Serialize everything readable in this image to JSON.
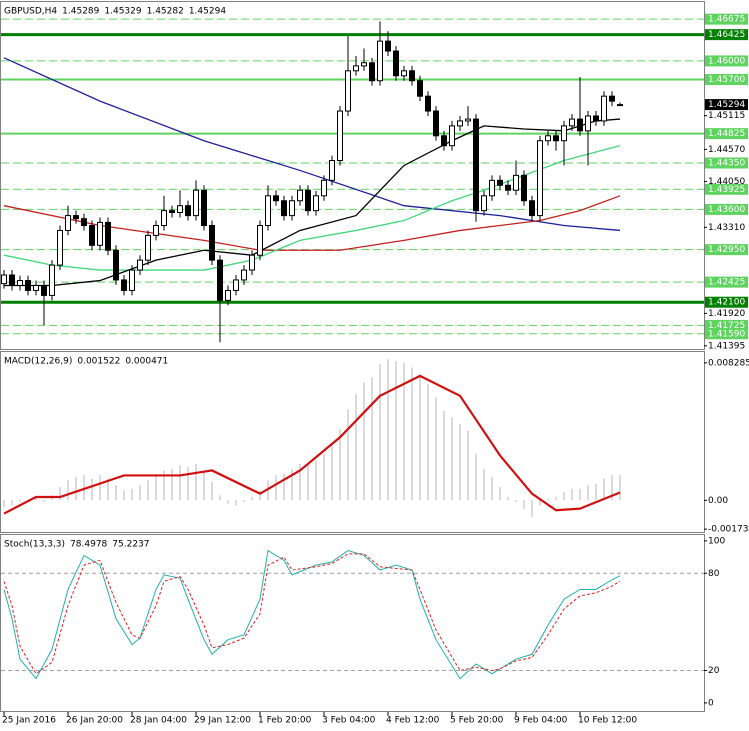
{
  "chart_data": [
    {
      "type": "candlestick",
      "ylim": [
        1.4136,
        1.4692
      ],
      "yticks": [
        1.45115,
        {
          "value": 1.4457,
          "label": "1.44570"
        },
        {
          "value": 1.4405,
          "label": "1.44050"
        },
        {
          "value": 1.4331,
          "label": "1.43310"
        },
        {
          "value": 1.4192,
          "label": "1.41920"
        },
        1.41395
      ],
      "levels": [
        {
          "value": 1.46675,
          "label": "1.46675",
          "color": "#5fd35f",
          "style": "dashed"
        },
        {
          "value": 1.46425,
          "label": "1.46425",
          "color": "#008000",
          "style": "solid"
        },
        {
          "value": 1.46,
          "label": "1.46000",
          "color": "#5fd35f",
          "style": "dashed"
        },
        {
          "value": 1.457,
          "label": "1.45700",
          "color": "#5fd35f",
          "style": "solid"
        },
        {
          "value": 1.44825,
          "label": "1.44825",
          "color": "#5fd35f",
          "style": "solid"
        },
        {
          "value": 1.4435,
          "label": "1.44350",
          "color": "#5fd35f",
          "style": "dashed"
        },
        {
          "value": 1.43925,
          "label": "1.43925",
          "color": "#5fd35f",
          "style": "dashed"
        },
        {
          "value": 1.436,
          "label": "1.43600",
          "color": "#5fd35f",
          "style": "dashed"
        },
        {
          "value": 1.4295,
          "label": "1.42950",
          "color": "#5fd35f",
          "style": "dashed"
        },
        {
          "value": 1.42425,
          "label": "1.42425",
          "color": "#5fd35f",
          "style": "dashed"
        },
        {
          "value": 1.421,
          "label": "1.42100",
          "color": "#008000",
          "style": "solid"
        },
        {
          "value": 1.41725,
          "label": "1.41725",
          "color": "#5fd35f",
          "style": "dashed"
        },
        {
          "value": 1.4159,
          "label": "1.41590",
          "color": "#5fd35f",
          "style": "dashed"
        }
      ],
      "series": [
        {
          "name": "GBPUSD,H4",
          "color_up": "#ffffff",
          "color_down": "#000000",
          "open": [
            1.424,
            1.4254,
            1.4237,
            1.4245,
            1.4229,
            1.4237,
            1.4221,
            1.427,
            1.4326,
            1.435,
            1.4345,
            1.4334,
            1.4302,
            1.4339,
            1.4294,
            1.4246,
            1.4229,
            1.4262,
            1.4278,
            1.4318,
            1.4334,
            1.4358,
            1.4355,
            1.4366,
            1.435,
            1.4391,
            1.4334,
            1.4278,
            1.4213,
            1.4229,
            1.4246,
            1.4262,
            1.4286,
            1.4334,
            1.4382,
            1.4374,
            1.435,
            1.4374,
            1.4391,
            1.4358,
            1.4382,
            1.4407,
            1.4439,
            1.4519,
            1.4584,
            1.4592,
            1.4597,
            1.4568,
            1.4632,
            1.4616,
            1.4576,
            1.4584,
            1.4568,
            1.4543,
            1.4519,
            1.4479,
            1.4463,
            1.4495,
            1.4503,
            1.4506,
            1.4358,
            1.4382,
            1.4407,
            1.4399,
            1.4391,
            1.4415,
            1.4374,
            1.435,
            1.4471,
            1.4479,
            1.4471,
            1.4495,
            1.4506,
            1.4487,
            1.4511,
            1.4503,
            1.4543,
            1.45289
          ],
          "high": [
            1.4262,
            1.4262,
            1.4253,
            1.4253,
            1.4245,
            1.4245,
            1.4278,
            1.4334,
            1.4366,
            1.4358,
            1.4353,
            1.4342,
            1.4347,
            1.4347,
            1.4302,
            1.4254,
            1.427,
            1.4286,
            1.4326,
            1.4342,
            1.4382,
            1.4366,
            1.4391,
            1.4374,
            1.4407,
            1.4399,
            1.4342,
            1.4286,
            1.4237,
            1.4254,
            1.427,
            1.4294,
            1.4342,
            1.4399,
            1.4391,
            1.4382,
            1.4382,
            1.4399,
            1.4399,
            1.439,
            1.4415,
            1.4447,
            1.4527,
            1.464,
            1.4608,
            1.462,
            1.4605,
            1.4664,
            1.4648,
            1.4624,
            1.4592,
            1.4592,
            1.4576,
            1.4551,
            1.4527,
            1.4487,
            1.4503,
            1.4511,
            1.4527,
            1.4514,
            1.439,
            1.4415,
            1.4415,
            1.4407,
            1.4439,
            1.4423,
            1.4382,
            1.4479,
            1.4487,
            1.4487,
            1.4503,
            1.4514,
            1.4574,
            1.4519,
            1.4519,
            1.4551,
            1.4551,
            1.45329
          ],
          "low": [
            1.4232,
            1.4229,
            1.4229,
            1.4221,
            1.4221,
            1.4173,
            1.4213,
            1.4262,
            1.4318,
            1.4337,
            1.4326,
            1.4294,
            1.4294,
            1.4286,
            1.4238,
            1.4221,
            1.4221,
            1.4254,
            1.427,
            1.431,
            1.4326,
            1.4347,
            1.4347,
            1.4342,
            1.4342,
            1.4326,
            1.427,
            1.4145,
            1.4205,
            1.4221,
            1.4238,
            1.4254,
            1.4278,
            1.4326,
            1.4366,
            1.4342,
            1.4342,
            1.4366,
            1.435,
            1.435,
            1.4374,
            1.4399,
            1.4431,
            1.4511,
            1.4576,
            1.4584,
            1.456,
            1.456,
            1.4608,
            1.4568,
            1.4568,
            1.456,
            1.4535,
            1.4511,
            1.4471,
            1.4455,
            1.4455,
            1.4487,
            1.4495,
            1.434,
            1.435,
            1.4374,
            1.4391,
            1.4383,
            1.4383,
            1.4366,
            1.4342,
            1.4342,
            1.4463,
            1.4455,
            1.4431,
            1.4487,
            1.4479,
            1.4431,
            1.4495,
            1.4495,
            1.4527,
            1.45282
          ],
          "close": [
            1.4254,
            1.4237,
            1.4245,
            1.4229,
            1.4237,
            1.4221,
            1.427,
            1.4326,
            1.435,
            1.4345,
            1.4334,
            1.4302,
            1.4339,
            1.4294,
            1.4246,
            1.4229,
            1.4262,
            1.4278,
            1.4318,
            1.4334,
            1.4358,
            1.4355,
            1.4366,
            1.435,
            1.4391,
            1.4334,
            1.4278,
            1.4213,
            1.4229,
            1.4246,
            1.4262,
            1.4286,
            1.4334,
            1.4382,
            1.4374,
            1.435,
            1.4374,
            1.4391,
            1.4358,
            1.4382,
            1.4407,
            1.4439,
            1.4519,
            1.4584,
            1.4592,
            1.4597,
            1.4568,
            1.4632,
            1.4616,
            1.4576,
            1.4584,
            1.4568,
            1.4543,
            1.4519,
            1.4479,
            1.4463,
            1.4495,
            1.4503,
            1.4506,
            1.4358,
            1.4382,
            1.4407,
            1.4399,
            1.4391,
            1.4415,
            1.4374,
            1.435,
            1.4471,
            1.4479,
            1.4471,
            1.4495,
            1.4506,
            1.4487,
            1.4511,
            1.4503,
            1.4543,
            1.4535,
            1.45294
          ]
        }
      ],
      "lines": [
        {
          "color": "#1f1f9c",
          "x": [
            0,
            12,
            25,
            37,
            50,
            62,
            70,
            77
          ],
          "values": [
            1.4605,
            1.4535,
            1.4471,
            1.4423,
            1.4366,
            1.435,
            1.4334,
            1.4326
          ]
        },
        {
          "color": "#c42020",
          "x": [
            0,
            12,
            25,
            32,
            42,
            50,
            57,
            67,
            72,
            77
          ],
          "values": [
            1.4366,
            1.4334,
            1.431,
            1.4294,
            1.4294,
            1.431,
            1.4326,
            1.4342,
            1.4358,
            1.4382
          ]
        },
        {
          "color": "#3fd87a",
          "x": [
            0,
            6,
            12,
            19,
            25,
            31,
            37,
            44,
            50,
            56,
            60,
            65,
            70,
            77
          ],
          "values": [
            1.4286,
            1.427,
            1.4262,
            1.4262,
            1.4262,
            1.4278,
            1.431,
            1.4326,
            1.4342,
            1.4374,
            1.4391,
            1.4415,
            1.4439,
            1.4463
          ]
        },
        {
          "color": "#000000",
          "x": [
            0,
            6,
            12,
            19,
            25,
            31,
            37,
            44,
            50,
            56,
            60,
            65,
            70,
            74,
            77
          ],
          "values": [
            1.4237,
            1.4237,
            1.4245,
            1.4278,
            1.4294,
            1.4286,
            1.4326,
            1.435,
            1.4431,
            1.4471,
            1.4495,
            1.449,
            1.4487,
            1.4503,
            1.4506
          ]
        }
      ]
    },
    {
      "type": "macd",
      "name": "MACD(12,26,9)",
      "ylim": [
        -0.00185,
        0.00888
      ],
      "yticks": [
        0.008285,
        {
          "value": 0,
          "label": "0.00"
        },
        -0.001738
      ],
      "series": [
        {
          "type": "histogram",
          "color": "#b4b4b4",
          "values": [
            -0.0004,
            -0.0003,
            -0.0001,
            0,
            0.0001,
            -0.0001,
            0.0003,
            0.0008,
            0.0012,
            0.0014,
            0.0015,
            0.0013,
            0.0015,
            0.0013,
            0.0009,
            0.0006,
            0.0007,
            0.0009,
            0.0012,
            0.0015,
            0.0018,
            0.0019,
            0.0021,
            0.002,
            0.0022,
            0.0018,
            0.0011,
            0.0003,
            -0.0002,
            -0.0003,
            -0.0001,
            0.0002,
            0.0006,
            0.0012,
            0.0015,
            0.0016,
            0.0019,
            0.0022,
            0.0022,
            0.0024,
            0.0028,
            0.0033,
            0.0043,
            0.0055,
            0.0064,
            0.0071,
            0.0074,
            0.0082,
            0.0085,
            0.0084,
            0.0083,
            0.008,
            0.0076,
            0.007,
            0.0062,
            0.0054,
            0.005,
            0.0046,
            0.0042,
            0.0028,
            0.0019,
            0.0014,
            0.0008,
            0.0002,
            -0.0001,
            -0.0005,
            -0.001,
            -0.0003,
            0.0001,
            0.0002,
            0.0005,
            0.0007,
            0.0007,
            0.0009,
            0.001,
            0.0013,
            0.0015,
            0.001522
          ]
        },
        {
          "type": "line",
          "color": "#d01010",
          "x": [
            0,
            4,
            7,
            15,
            22,
            26,
            32,
            37,
            42,
            47,
            52,
            57,
            62,
            66,
            69,
            72,
            77
          ],
          "values": [
            -0.0008,
            0.0002,
            0.0002,
            0.0015,
            0.0015,
            0.0018,
            0.0004,
            0.0018,
            0.0038,
            0.0063,
            0.0075,
            0.0063,
            0.0027,
            0.0004,
            -0.0006,
            -0.0005,
            0.000471
          ]
        }
      ]
    },
    {
      "type": "stochastic",
      "name": "Stoch(13,3,3)",
      "ylim": [
        -5,
        103
      ],
      "yticks": [
        0,
        20,
        80,
        100
      ],
      "levels": [
        20,
        80
      ],
      "series": [
        {
          "color": "#20b2aa",
          "dash": false,
          "x": [
            0,
            1,
            2,
            4,
            6,
            8,
            10,
            12,
            14,
            16,
            17,
            19,
            20,
            22,
            23,
            25,
            26,
            28,
            30,
            32,
            33,
            35,
            36,
            39,
            41,
            43,
            45,
            47,
            49,
            51,
            52,
            54,
            57,
            59,
            61,
            62,
            64,
            66,
            68,
            70,
            72,
            74,
            76,
            77
          ],
          "values": [
            70,
            52,
            27,
            15,
            33,
            70,
            91,
            85,
            52,
            36,
            40,
            70,
            79,
            77,
            64,
            39,
            30,
            39,
            42,
            64,
            94,
            88,
            79,
            85,
            87,
            94,
            91,
            82,
            85,
            82,
            64,
            39,
            15,
            24,
            18,
            21,
            27,
            30,
            48,
            64,
            70,
            70,
            76,
            78.4978
          ]
        },
        {
          "color": "#e02020",
          "dash": true,
          "x": [
            0,
            1,
            2,
            4,
            6,
            8,
            10,
            12,
            14,
            16,
            17,
            19,
            20,
            22,
            23,
            25,
            26,
            28,
            30,
            32,
            33,
            35,
            36,
            39,
            41,
            43,
            45,
            47,
            49,
            51,
            52,
            54,
            57,
            59,
            61,
            62,
            64,
            66,
            68,
            70,
            72,
            74,
            76,
            77
          ],
          "values": [
            75,
            60,
            35,
            18,
            25,
            60,
            85,
            88,
            62,
            42,
            40,
            60,
            75,
            78,
            70,
            48,
            34,
            36,
            40,
            55,
            85,
            90,
            82,
            84,
            86,
            92,
            92,
            84,
            83,
            82,
            70,
            45,
            20,
            22,
            20,
            21,
            26,
            28,
            42,
            58,
            66,
            68,
            72,
            75.2237
          ]
        }
      ],
      "xticks": [
        {
          "value": 0,
          "label": "25 Jan 2016"
        },
        {
          "value": 8,
          "label": "26 Jan 20:00"
        },
        {
          "value": 16,
          "label": "28 Jan 04:00"
        },
        {
          "value": 24,
          "label": "29 Jan 12:00"
        },
        {
          "value": 32,
          "label": "1 Feb 20:00"
        },
        {
          "value": 40,
          "label": "3 Feb 04:00"
        },
        {
          "value": 48,
          "label": "4 Feb 12:00"
        },
        {
          "value": 56,
          "label": "5 Feb 20:00"
        },
        {
          "value": 64,
          "label": "9 Feb 04:00"
        },
        {
          "value": 72,
          "label": "10 Feb 12:00"
        }
      ]
    }
  ]
}
